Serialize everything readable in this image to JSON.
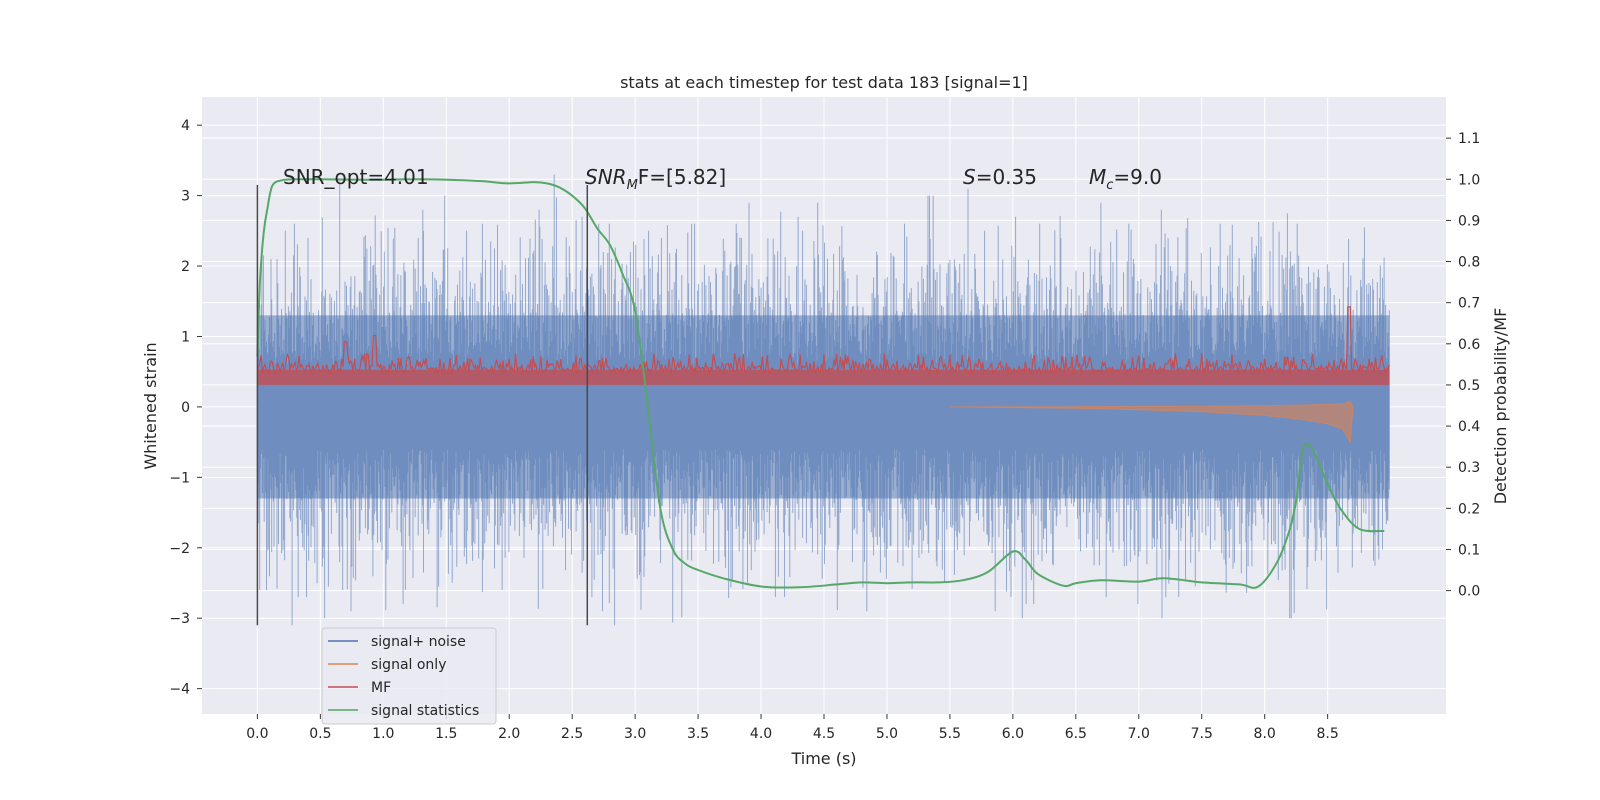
{
  "chart_data": {
    "type": "line",
    "title": "stats at each timestep for test data 183 [signal=1]",
    "xlabel": "Time (s)",
    "ylabel": "Whitened strain",
    "ylabel_right": "Detection probability/MF",
    "xlim": [
      -0.44,
      9.44
    ],
    "ylim": [
      -4.36,
      4.4
    ],
    "ylim_right": [
      -0.3,
      1.2
    ],
    "x_ticks": [
      "0.0",
      "0.5",
      "1.0",
      "1.5",
      "2.0",
      "2.5",
      "3.0",
      "3.5",
      "4.0",
      "4.5",
      "5.0",
      "5.5",
      "6.0",
      "6.5",
      "7.0",
      "7.5",
      "8.0",
      "8.5"
    ],
    "y_ticks": [
      "4",
      "3",
      "2",
      "1",
      "0",
      "−1",
      "−2",
      "−3",
      "−4"
    ],
    "y_tick_values": [
      4,
      3,
      2,
      1,
      0,
      -1,
      -2,
      -3,
      -4
    ],
    "y_right_ticks": [
      "1.1",
      "1.0",
      "0.9",
      "0.8",
      "0.7",
      "0.6",
      "0.5",
      "0.4",
      "0.3",
      "0.2",
      "0.1",
      "0.0"
    ],
    "y_right_tick_values": [
      1.1,
      1.0,
      0.9,
      0.8,
      0.7,
      0.6,
      0.5,
      0.4,
      0.3,
      0.2,
      0.1,
      0.0
    ],
    "grid": true,
    "legend_position": "lower-left",
    "annotations": {
      "snr_opt": "SNR_opt=4.01",
      "snr_mf_main": "SNR",
      "snr_mf_sub": "M",
      "snr_mf_rest": "F=[5.82]",
      "s_main": "S",
      "s_rest": "=0.35",
      "mc_main": "M",
      "mc_sub": "c",
      "mc_rest": "=9.0"
    },
    "vertical_markers": [
      0.0,
      2.62
    ],
    "series": [
      {
        "name": "signal+ noise",
        "color": "#4c72b0",
        "x_range": [
          0.0,
          8.99
        ],
        "envelope_pos": [
          2.3,
          2.1,
          2.6,
          3.0,
          2.4,
          2.7,
          3.2,
          2.5,
          2.9,
          3.1,
          2.6,
          3.3,
          2.4,
          2.8,
          3.0,
          2.7,
          3.4,
          2.6,
          2.9,
          3.2,
          2.5,
          3.0,
          2.8,
          3.3,
          3.1,
          2.7,
          3.0,
          2.6,
          3.2,
          2.9,
          2.7,
          2.5,
          3.0,
          2.8,
          2.6,
          3.1,
          2.7,
          4.0,
          2.6,
          2.9,
          2.8,
          3.3,
          2.7,
          2.5,
          2.9,
          3.0,
          2.6,
          2.8,
          3.1,
          2.7,
          2.9,
          2.6,
          3.2,
          3.0,
          2.7,
          2.8,
          3.1,
          2.5,
          3.2,
          2.9,
          2.7,
          3.0,
          2.6,
          3.0,
          2.8,
          3.3,
          2.7,
          2.9,
          3.1,
          2.6,
          3.0,
          2.8,
          3.2,
          2.9,
          2.7,
          3.0,
          2.6,
          2.8,
          3.1,
          2.7,
          2.9,
          3.2,
          2.6,
          3.0,
          2.8,
          3.5,
          2.9,
          3.1,
          2.7,
          2.8
        ],
        "envelope_neg": [
          -2.6,
          -2.9,
          -3.1,
          -2.7,
          -2.8,
          -3.0,
          -2.6,
          -2.9,
          -3.1,
          -2.7,
          -3.0,
          -2.8,
          -3.1,
          -2.6,
          -2.9,
          -3.3,
          -2.7,
          -2.8,
          -3.0,
          -2.6,
          -2.9,
          -2.7,
          -3.0,
          -3.5,
          -2.8,
          -3.0,
          -2.7,
          -2.9,
          -3.1,
          -2.8,
          -3.0,
          -2.7,
          -2.9,
          -3.2,
          -2.8,
          -3.1,
          -2.7,
          -2.9,
          -3.0,
          -2.8,
          -3.1,
          -2.7,
          -3.0,
          -2.9,
          -3.8,
          -2.8,
          -3.1,
          -3.9,
          -2.9,
          -3.0,
          -2.8,
          -3.1,
          -2.7,
          -2.9,
          -3.9,
          -2.8,
          -3.0,
          -3.2,
          -2.9,
          -2.7,
          -3.0,
          -2.8,
          -3.1,
          -2.9,
          -3.3,
          -2.8,
          -3.0,
          -2.7,
          -3.1,
          -2.9,
          -2.8,
          -3.0,
          -3.1,
          -2.7,
          -2.9,
          -3.0,
          -3.7,
          -2.8,
          -3.0,
          -3.1,
          -2.9,
          -2.7,
          -3.0,
          -2.8,
          -3.1,
          -3.7,
          -2.9,
          -2.7,
          -2.9,
          -2.8
        ]
      },
      {
        "name": "signal only",
        "color": "#dd8452",
        "x": [
          5.5,
          6.0,
          6.5,
          7.0,
          7.5,
          8.0,
          8.3,
          8.5,
          8.62,
          8.68,
          8.7
        ],
        "amplitude": [
          0.0,
          0.01,
          0.02,
          0.04,
          0.07,
          0.12,
          0.18,
          0.24,
          0.32,
          0.5,
          0.05
        ]
      },
      {
        "name": "MF",
        "color": "#c44e52",
        "axis": "right",
        "x_range": [
          0.0,
          8.99
        ],
        "baseline": 0.5,
        "band": [
          0.507,
          0.577
        ],
        "peaks": [
          {
            "x": 0.7,
            "y": 0.605
          },
          {
            "x": 0.93,
            "y": 0.62
          },
          {
            "x": 8.67,
            "y": 0.69
          }
        ]
      },
      {
        "name": "signal statistics",
        "color": "#55a868",
        "axis": "right",
        "x": [
          0.0,
          0.02,
          0.05,
          0.08,
          0.12,
          0.2,
          0.3,
          0.5,
          0.8,
          1.0,
          1.3,
          1.6,
          1.8,
          2.0,
          2.2,
          2.3,
          2.4,
          2.5,
          2.6,
          2.7,
          2.8,
          2.9,
          3.0,
          3.1,
          3.2,
          3.3,
          3.4,
          3.5,
          3.7,
          4.0,
          4.3,
          4.6,
          4.8,
          5.0,
          5.2,
          5.4,
          5.6,
          5.8,
          6.0,
          6.1,
          6.2,
          6.4,
          6.5,
          6.7,
          7.0,
          7.2,
          7.5,
          7.8,
          7.95,
          8.1,
          8.2,
          8.25,
          8.3,
          8.35,
          8.4,
          8.5,
          8.6,
          8.75,
          8.95
        ],
        "y": [
          0.57,
          0.75,
          0.87,
          0.93,
          0.985,
          0.998,
          1.0,
          1.0,
          0.999,
          0.999,
          1.0,
          0.998,
          0.995,
          0.99,
          0.993,
          0.99,
          0.98,
          0.96,
          0.93,
          0.88,
          0.84,
          0.77,
          0.68,
          0.45,
          0.2,
          0.1,
          0.065,
          0.05,
          0.03,
          0.01,
          0.008,
          0.015,
          0.02,
          0.018,
          0.02,
          0.02,
          0.025,
          0.045,
          0.095,
          0.075,
          0.04,
          0.012,
          0.018,
          0.025,
          0.022,
          0.03,
          0.02,
          0.015,
          0.01,
          0.07,
          0.15,
          0.22,
          0.34,
          0.355,
          0.33,
          0.26,
          0.2,
          0.15,
          0.145
        ]
      }
    ]
  }
}
